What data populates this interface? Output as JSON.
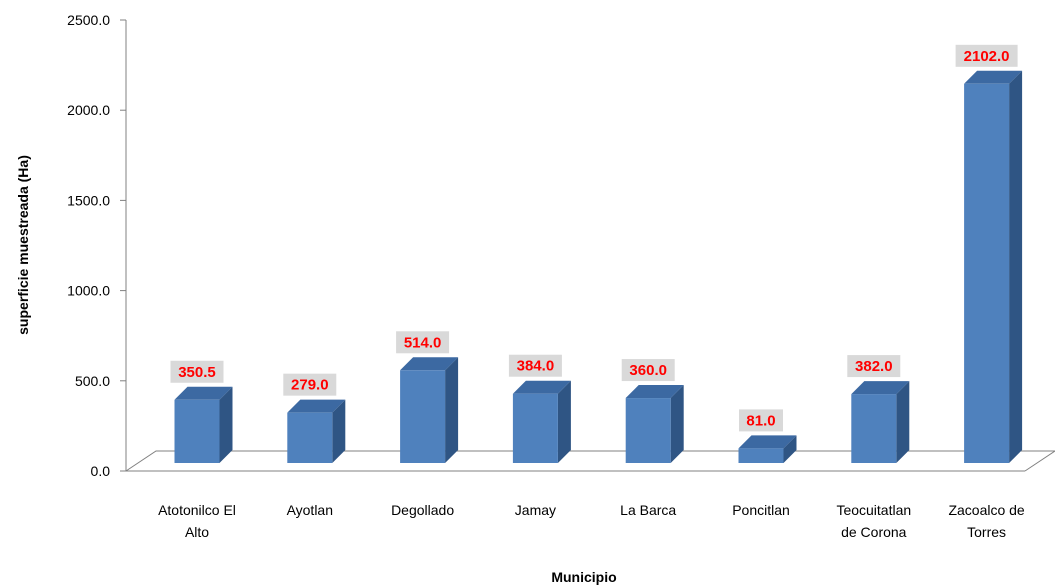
{
  "chart_data": {
    "type": "bar",
    "categories": [
      "Atotonilco El Alto",
      "Ayotlan",
      "Degollado",
      "Jamay",
      "La Barca",
      "Poncitlan",
      "Teocuitatlan de Corona",
      "Zacoalco de Torres"
    ],
    "category_lines": [
      [
        "Atotonilco El",
        "Alto"
      ],
      [
        "Ayotlan"
      ],
      [
        "Degollado"
      ],
      [
        "Jamay"
      ],
      [
        "La Barca"
      ],
      [
        "Poncitlan"
      ],
      [
        "Teocuitatlan",
        "de Corona"
      ],
      [
        "Zacoalco de",
        "Torres"
      ]
    ],
    "values": [
      350.5,
      279.0,
      514.0,
      384.0,
      360.0,
      81.0,
      382.0,
      2102.0
    ],
    "data_labels": [
      "350.5",
      "279.0",
      "514.0",
      "384.0",
      "360.0",
      "81.0",
      "382.0",
      "2102.0"
    ],
    "title": "",
    "xlabel": "Municipio",
    "ylabel": "superficie muestreada (Ha)",
    "ylim": [
      0,
      2500
    ],
    "yticks": [
      0,
      500,
      1000,
      1500,
      2000,
      2500
    ],
    "ytick_labels": [
      "0.0",
      "500.0",
      "1000.0",
      "1500.0",
      "2000.0",
      "2500.0"
    ],
    "grid": false,
    "legend": "none",
    "style": "3d-bar",
    "colors": {
      "bar_front": "#4f81bd",
      "bar_side": "#2f5584",
      "bar_top": "#3c69a2",
      "data_label_text": "#ff0000",
      "data_label_bg": "#d9d9d9",
      "axis": "#808080"
    }
  }
}
